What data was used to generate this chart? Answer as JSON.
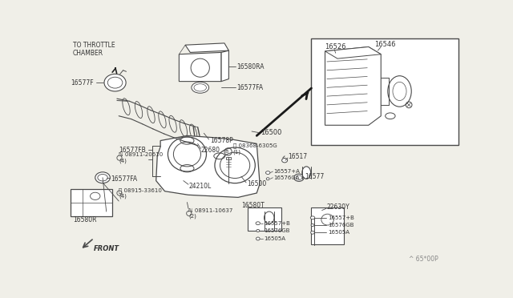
{
  "bg_color": "#f0efe8",
  "line_color": "#4a4a4a",
  "text_color": "#333333",
  "watermark": "^ 65*00P",
  "labels": {
    "throttle": "TO THROTTLE\nCHAMBER",
    "16577F": "16577F",
    "16580RA": "16580RA",
    "16577FA_top": "16577FA",
    "16578P": "16578P",
    "22680": "22680",
    "16577FB": "16577FB",
    "08911_20610": "ℕ 08911-20610\n(4)",
    "16577FA_left": "16577FA",
    "16580R": "16580R",
    "08915_33610": "Ⓜ 08915-33610\n(4)",
    "24210L": "24210L",
    "08911_10637": "ℕ 08911-10637\n(2)",
    "08368_6305G": "Ⓑ 08368-6305G\n(1)",
    "16557A": "16557+A",
    "16576GA": "16576GA",
    "16500_arrow": "16500",
    "16500_body": "16500",
    "16517": "16517",
    "16577_right": "16577",
    "16580T": "16580T",
    "22630Y": "22630Y",
    "16557B_left": "16557+B",
    "16576GB_left": "16576GB",
    "16505A_left": "16505A",
    "16557B_right": "16557+B",
    "16576GB_right": "16576GB",
    "16505A_right": "16505A",
    "16526": "16526",
    "16546": "16546",
    "front": "FRONT"
  }
}
